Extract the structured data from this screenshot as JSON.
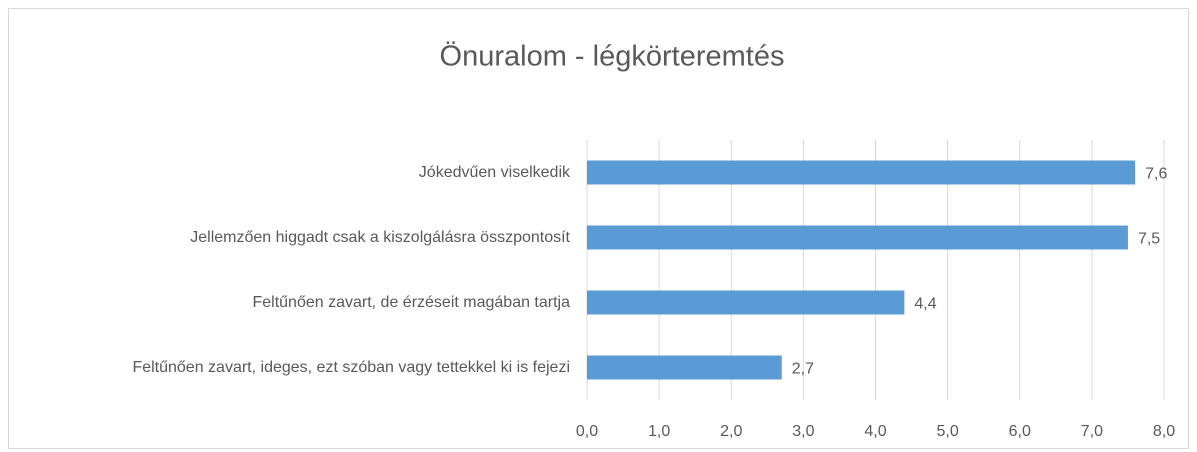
{
  "chart_data": {
    "type": "bar",
    "orientation": "horizontal",
    "title": "Önuralom - légkörteremtés",
    "categories": [
      "Jókedvűen viselkedik",
      "Jellemzően higgadt csak a kiszolgálásra összpontosít",
      "Feltűnően zavart, de érzéseit magában tartja",
      "Feltűnően zavart, ideges, ezt szóban vagy tettekkel ki is fejezi"
    ],
    "values": [
      7.6,
      7.5,
      4.4,
      2.7
    ],
    "value_labels": [
      "7,6",
      "7,5",
      "4,4",
      "2,7"
    ],
    "color": "#5b9bd5",
    "xlim": [
      0,
      8
    ],
    "xticks": [
      {
        "value": 0,
        "label": "0,0"
      },
      {
        "value": 1,
        "label": "1,0"
      },
      {
        "value": 2,
        "label": "2,0"
      },
      {
        "value": 3,
        "label": "3,0"
      },
      {
        "value": 4,
        "label": "4,0"
      },
      {
        "value": 5,
        "label": "5,0"
      },
      {
        "value": 6,
        "label": "6,0"
      },
      {
        "value": 7,
        "label": "7,0"
      },
      {
        "value": 8,
        "label": "8,0"
      }
    ],
    "grid": true
  }
}
